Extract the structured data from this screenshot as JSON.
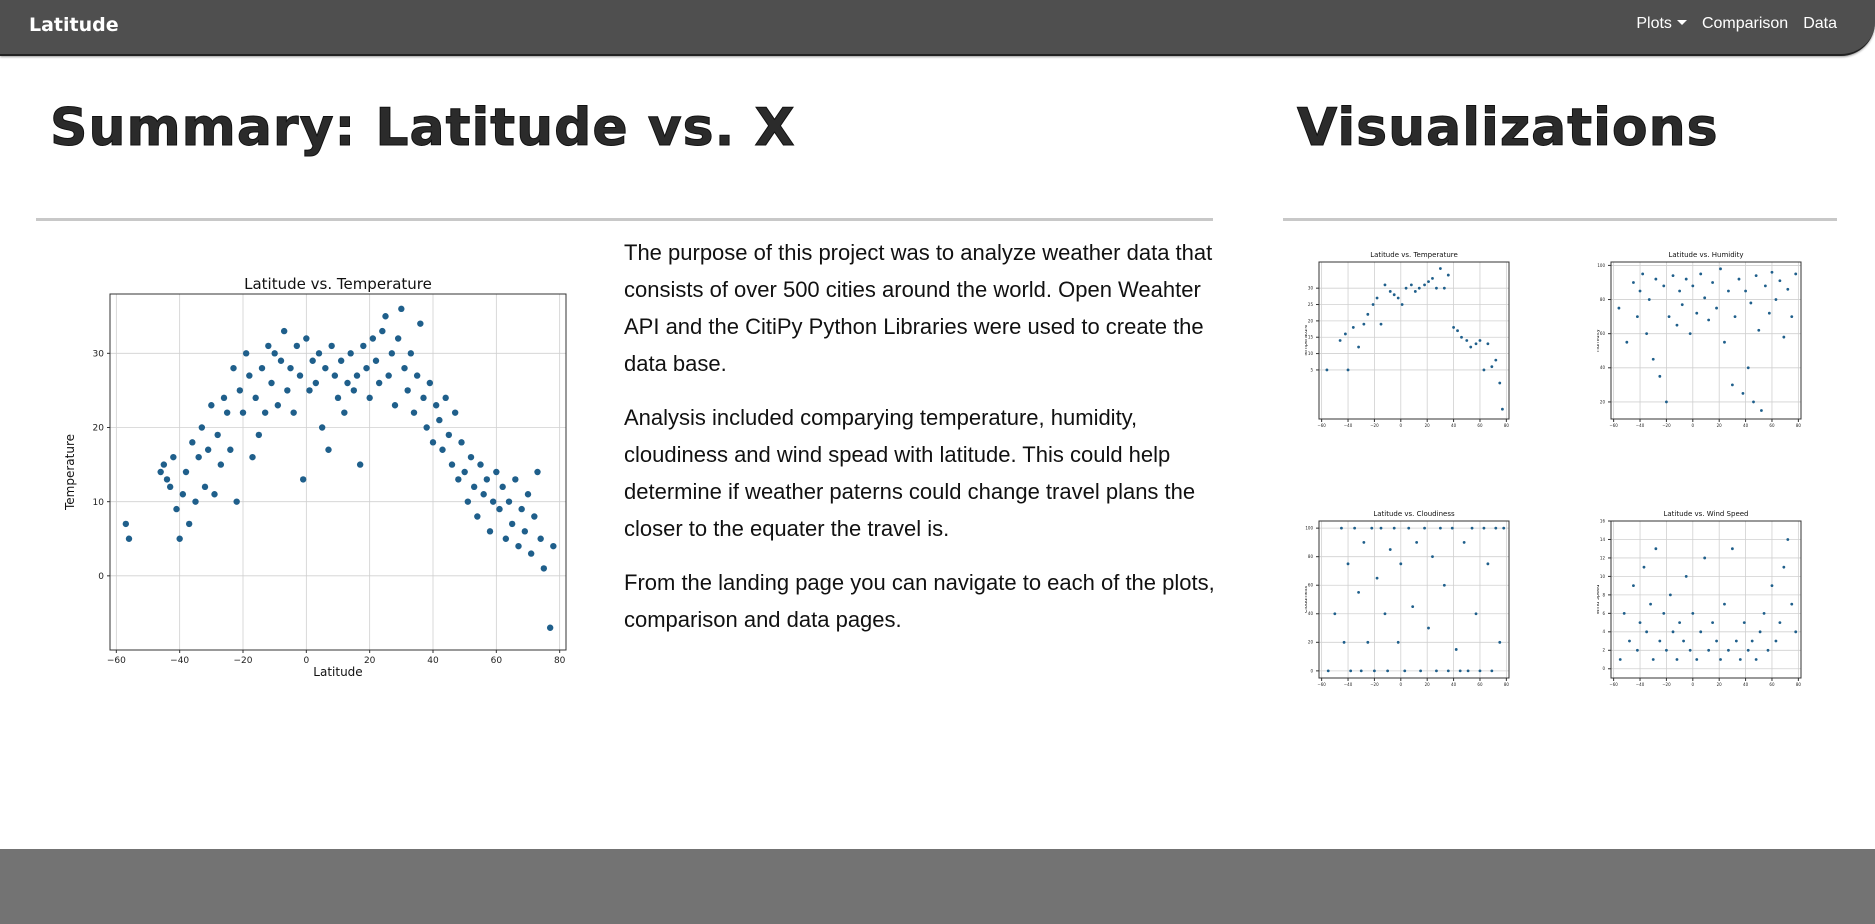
{
  "navbar": {
    "brand": "Latitude",
    "links": [
      {
        "label": "Plots",
        "dropdown": true
      },
      {
        "label": "Comparison",
        "dropdown": false
      },
      {
        "label": "Data",
        "dropdown": false
      }
    ]
  },
  "summary": {
    "title": "Summary: Latitude vs. X",
    "paragraphs": [
      "The purpose of this project was to analyze weather data that consists of over 500 cities around the world. Open Weahter API and the CitiPy Python Libraries were used to create the data base.",
      "Analysis included comparying temperature, humidity, cloudiness and wind spead with latitude. This could help determine if weather paterns could change travel plans the closer to the equater the travel is.",
      "From the landing page you can navigate to each of the plots, comparison and data pages."
    ]
  },
  "visualizations": {
    "title": "Visualizations"
  },
  "colors": {
    "navbar": "#4f4f4f",
    "footer": "#737373",
    "marker": "#1f5f8b"
  },
  "chart_data": [
    {
      "type": "scatter",
      "title": "Latitude vs. Temperature",
      "xlabel": "Latitude",
      "ylabel": "Temperature",
      "xlim": [
        -62,
        82
      ],
      "ylim": [
        -10,
        38
      ],
      "xticks": [
        -60,
        -40,
        -20,
        0,
        20,
        40,
        60,
        80
      ],
      "yticks": [
        0,
        10,
        20,
        30
      ],
      "grid": true,
      "points": [
        [
          -56,
          5
        ],
        [
          -57,
          7
        ],
        [
          -46,
          14
        ],
        [
          -45,
          15
        ],
        [
          -44,
          13
        ],
        [
          -43,
          12
        ],
        [
          -42,
          16
        ],
        [
          -41,
          9
        ],
        [
          -40,
          5
        ],
        [
          -39,
          11
        ],
        [
          -38,
          14
        ],
        [
          -37,
          7
        ],
        [
          -36,
          18
        ],
        [
          -35,
          10
        ],
        [
          -34,
          16
        ],
        [
          -33,
          20
        ],
        [
          -32,
          12
        ],
        [
          -31,
          17
        ],
        [
          -30,
          23
        ],
        [
          -29,
          11
        ],
        [
          -28,
          19
        ],
        [
          -27,
          15
        ],
        [
          -26,
          24
        ],
        [
          -25,
          22
        ],
        [
          -24,
          17
        ],
        [
          -23,
          28
        ],
        [
          -22,
          10
        ],
        [
          -21,
          25
        ],
        [
          -20,
          22
        ],
        [
          -19,
          30
        ],
        [
          -18,
          27
        ],
        [
          -17,
          16
        ],
        [
          -16,
          24
        ],
        [
          -15,
          19
        ],
        [
          -14,
          28
        ],
        [
          -13,
          22
        ],
        [
          -12,
          31
        ],
        [
          -11,
          26
        ],
        [
          -10,
          30
        ],
        [
          -9,
          23
        ],
        [
          -8,
          29
        ],
        [
          -7,
          33
        ],
        [
          -6,
          25
        ],
        [
          -5,
          28
        ],
        [
          -4,
          22
        ],
        [
          -3,
          31
        ],
        [
          -2,
          27
        ],
        [
          -1,
          13
        ],
        [
          0,
          32
        ],
        [
          1,
          25
        ],
        [
          2,
          29
        ],
        [
          3,
          26
        ],
        [
          4,
          30
        ],
        [
          5,
          20
        ],
        [
          6,
          28
        ],
        [
          7,
          17
        ],
        [
          8,
          31
        ],
        [
          9,
          27
        ],
        [
          10,
          24
        ],
        [
          11,
          29
        ],
        [
          12,
          22
        ],
        [
          13,
          26
        ],
        [
          14,
          30
        ],
        [
          15,
          25
        ],
        [
          16,
          27
        ],
        [
          17,
          15
        ],
        [
          18,
          31
        ],
        [
          19,
          28
        ],
        [
          20,
          24
        ],
        [
          21,
          32
        ],
        [
          22,
          29
        ],
        [
          23,
          26
        ],
        [
          24,
          33
        ],
        [
          25,
          35
        ],
        [
          26,
          27
        ],
        [
          27,
          30
        ],
        [
          28,
          23
        ],
        [
          29,
          32
        ],
        [
          30,
          36
        ],
        [
          31,
          28
        ],
        [
          32,
          25
        ],
        [
          33,
          30
        ],
        [
          34,
          22
        ],
        [
          35,
          27
        ],
        [
          36,
          34
        ],
        [
          37,
          24
        ],
        [
          38,
          20
        ],
        [
          39,
          26
        ],
        [
          40,
          18
        ],
        [
          41,
          23
        ],
        [
          42,
          21
        ],
        [
          43,
          17
        ],
        [
          44,
          24
        ],
        [
          45,
          19
        ],
        [
          46,
          15
        ],
        [
          47,
          22
        ],
        [
          48,
          13
        ],
        [
          49,
          18
        ],
        [
          50,
          14
        ],
        [
          51,
          10
        ],
        [
          52,
          16
        ],
        [
          53,
          12
        ],
        [
          54,
          8
        ],
        [
          55,
          15
        ],
        [
          56,
          11
        ],
        [
          57,
          13
        ],
        [
          58,
          6
        ],
        [
          59,
          10
        ],
        [
          60,
          14
        ],
        [
          61,
          9
        ],
        [
          62,
          12
        ],
        [
          63,
          5
        ],
        [
          64,
          10
        ],
        [
          65,
          7
        ],
        [
          66,
          13
        ],
        [
          67,
          4
        ],
        [
          68,
          9
        ],
        [
          69,
          6
        ],
        [
          70,
          11
        ],
        [
          71,
          3
        ],
        [
          72,
          8
        ],
        [
          73,
          14
        ],
        [
          74,
          5
        ],
        [
          75,
          1
        ],
        [
          78,
          4
        ],
        [
          77,
          -7
        ]
      ]
    },
    {
      "type": "scatter",
      "title": "Latitude vs. Temperature",
      "xlabel": "Latitude",
      "ylabel": "Temperature",
      "xlim": [
        -62,
        82
      ],
      "ylim": [
        -10,
        38
      ],
      "xticks": [
        -60,
        -40,
        -20,
        0,
        20,
        40,
        60,
        80
      ],
      "yticks": [
        5,
        10,
        15,
        20,
        25,
        30
      ],
      "grid": true,
      "points": [
        [
          -56,
          5
        ],
        [
          -46,
          14
        ],
        [
          -42,
          16
        ],
        [
          -40,
          5
        ],
        [
          -36,
          18
        ],
        [
          -32,
          12
        ],
        [
          -28,
          19
        ],
        [
          -25,
          22
        ],
        [
          -21,
          25
        ],
        [
          -18,
          27
        ],
        [
          -15,
          19
        ],
        [
          -12,
          31
        ],
        [
          -8,
          29
        ],
        [
          -5,
          28
        ],
        [
          -2,
          27
        ],
        [
          1,
          25
        ],
        [
          4,
          30
        ],
        [
          8,
          31
        ],
        [
          11,
          29
        ],
        [
          14,
          30
        ],
        [
          18,
          31
        ],
        [
          21,
          32
        ],
        [
          24,
          33
        ],
        [
          27,
          30
        ],
        [
          30,
          36
        ],
        [
          33,
          30
        ],
        [
          36,
          34
        ],
        [
          40,
          18
        ],
        [
          43,
          17
        ],
        [
          46,
          15
        ],
        [
          50,
          14
        ],
        [
          53,
          12
        ],
        [
          57,
          13
        ],
        [
          60,
          14
        ],
        [
          63,
          5
        ],
        [
          66,
          13
        ],
        [
          69,
          6
        ],
        [
          72,
          8
        ],
        [
          75,
          1
        ],
        [
          77,
          -7
        ]
      ]
    },
    {
      "type": "scatter",
      "title": "Latitude vs. Humidity",
      "xlabel": "Latitude",
      "ylabel": "Humidity",
      "xlim": [
        -62,
        82
      ],
      "ylim": [
        10,
        102
      ],
      "xticks": [
        -60,
        -40,
        -20,
        0,
        20,
        40,
        60,
        80
      ],
      "yticks": [
        20,
        40,
        60,
        80,
        100
      ],
      "grid": true,
      "points": [
        [
          -56,
          75
        ],
        [
          -50,
          55
        ],
        [
          -45,
          90
        ],
        [
          -42,
          70
        ],
        [
          -40,
          85
        ],
        [
          -38,
          95
        ],
        [
          -35,
          60
        ],
        [
          -33,
          80
        ],
        [
          -30,
          45
        ],
        [
          -28,
          92
        ],
        [
          -25,
          35
        ],
        [
          -22,
          88
        ],
        [
          -20,
          20
        ],
        [
          -18,
          70
        ],
        [
          -15,
          94
        ],
        [
          -12,
          65
        ],
        [
          -10,
          85
        ],
        [
          -8,
          77
        ],
        [
          -5,
          92
        ],
        [
          -2,
          60
        ],
        [
          0,
          88
        ],
        [
          3,
          72
        ],
        [
          6,
          95
        ],
        [
          9,
          81
        ],
        [
          12,
          68
        ],
        [
          15,
          90
        ],
        [
          18,
          75
        ],
        [
          21,
          98
        ],
        [
          24,
          55
        ],
        [
          27,
          85
        ],
        [
          30,
          30
        ],
        [
          32,
          70
        ],
        [
          35,
          92
        ],
        [
          38,
          25
        ],
        [
          40,
          85
        ],
        [
          42,
          40
        ],
        [
          44,
          78
        ],
        [
          46,
          20
        ],
        [
          48,
          94
        ],
        [
          50,
          62
        ],
        [
          52,
          15
        ],
        [
          55,
          88
        ],
        [
          58,
          72
        ],
        [
          60,
          96
        ],
        [
          63,
          80
        ],
        [
          66,
          91
        ],
        [
          69,
          58
        ],
        [
          72,
          86
        ],
        [
          75,
          70
        ],
        [
          78,
          95
        ]
      ]
    },
    {
      "type": "scatter",
      "title": "Latitude vs. Cloudiness",
      "xlabel": "Latitude",
      "ylabel": "Cloudiness",
      "xlim": [
        -62,
        82
      ],
      "ylim": [
        -5,
        105
      ],
      "xticks": [
        -60,
        -40,
        -20,
        0,
        20,
        40,
        60,
        80
      ],
      "yticks": [
        0,
        20,
        40,
        60,
        80,
        100
      ],
      "grid": true,
      "points": [
        [
          -55,
          0
        ],
        [
          -50,
          40
        ],
        [
          -45,
          100
        ],
        [
          -43,
          20
        ],
        [
          -40,
          75
        ],
        [
          -38,
          0
        ],
        [
          -35,
          100
        ],
        [
          -32,
          55
        ],
        [
          -30,
          0
        ],
        [
          -28,
          90
        ],
        [
          -25,
          20
        ],
        [
          -22,
          100
        ],
        [
          -20,
          0
        ],
        [
          -18,
          65
        ],
        [
          -15,
          100
        ],
        [
          -12,
          40
        ],
        [
          -10,
          0
        ],
        [
          -8,
          85
        ],
        [
          -5,
          100
        ],
        [
          -2,
          20
        ],
        [
          0,
          75
        ],
        [
          3,
          0
        ],
        [
          6,
          100
        ],
        [
          9,
          45
        ],
        [
          12,
          90
        ],
        [
          15,
          0
        ],
        [
          18,
          100
        ],
        [
          21,
          30
        ],
        [
          24,
          80
        ],
        [
          27,
          0
        ],
        [
          30,
          100
        ],
        [
          33,
          60
        ],
        [
          36,
          0
        ],
        [
          39,
          100
        ],
        [
          42,
          15
        ],
        [
          45,
          0
        ],
        [
          48,
          90
        ],
        [
          51,
          0
        ],
        [
          54,
          100
        ],
        [
          57,
          40
        ],
        [
          60,
          0
        ],
        [
          63,
          100
        ],
        [
          66,
          75
        ],
        [
          69,
          0
        ],
        [
          72,
          100
        ],
        [
          75,
          20
        ],
        [
          78,
          100
        ]
      ]
    },
    {
      "type": "scatter",
      "title": "Latitude vs. Wind Speed",
      "xlabel": "Latitude",
      "ylabel": "Wind Speed",
      "xlim": [
        -62,
        82
      ],
      "ylim": [
        -1,
        16
      ],
      "xticks": [
        -60,
        -40,
        -20,
        0,
        20,
        40,
        60,
        80
      ],
      "yticks": [
        0,
        2,
        4,
        6,
        8,
        10,
        12,
        14,
        16
      ],
      "grid": true,
      "points": [
        [
          -55,
          1
        ],
        [
          -52,
          6
        ],
        [
          -48,
          3
        ],
        [
          -45,
          9
        ],
        [
          -42,
          2
        ],
        [
          -40,
          5
        ],
        [
          -37,
          11
        ],
        [
          -35,
          4
        ],
        [
          -32,
          7
        ],
        [
          -30,
          1
        ],
        [
          -28,
          13
        ],
        [
          -25,
          3
        ],
        [
          -22,
          6
        ],
        [
          -20,
          2
        ],
        [
          -17,
          8
        ],
        [
          -15,
          4
        ],
        [
          -12,
          1
        ],
        [
          -10,
          5
        ],
        [
          -7,
          3
        ],
        [
          -5,
          10
        ],
        [
          -2,
          2
        ],
        [
          0,
          6
        ],
        [
          3,
          1
        ],
        [
          6,
          4
        ],
        [
          9,
          12
        ],
        [
          12,
          2
        ],
        [
          15,
          5
        ],
        [
          18,
          3
        ],
        [
          21,
          1
        ],
        [
          24,
          7
        ],
        [
          27,
          2
        ],
        [
          30,
          13
        ],
        [
          33,
          3
        ],
        [
          36,
          1
        ],
        [
          39,
          5
        ],
        [
          42,
          2
        ],
        [
          45,
          3
        ],
        [
          48,
          1
        ],
        [
          51,
          4
        ],
        [
          54,
          6
        ],
        [
          57,
          2
        ],
        [
          60,
          9
        ],
        [
          63,
          3
        ],
        [
          66,
          5
        ],
        [
          69,
          11
        ],
        [
          72,
          14
        ],
        [
          75,
          7
        ],
        [
          78,
          4
        ]
      ]
    }
  ]
}
